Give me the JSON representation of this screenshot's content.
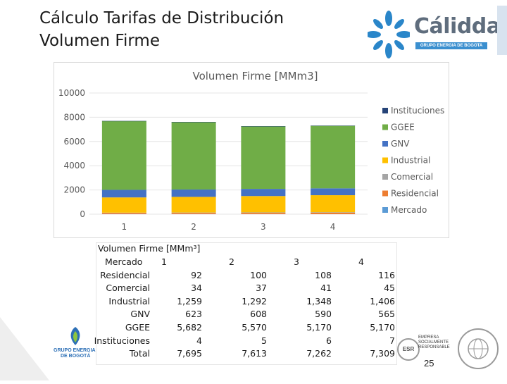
{
  "slide": {
    "title_line1": "Cálculo Tarifas de Distribución",
    "title_line2": "Volumen Firme",
    "page_number": "25"
  },
  "logo": {
    "brand": "Cálidda",
    "subtitle": "GRUPO ENERGIA DE BOGOTA",
    "brand_color": "#5f6d7d",
    "accent_color": "#3b8fcf"
  },
  "footer": {
    "gb_text_line1": "GRUPO ENERGIA",
    "gb_text_line2": "DE BOGOTÁ",
    "esr_line1": "EMPRESA",
    "esr_line2": "SOCIALMENTE",
    "esr_line3": "RESPONSABLE",
    "esr_badge": "ESR"
  },
  "chart_data": {
    "type": "bar",
    "stacked": true,
    "title": "Volumen Firme [MMm3]",
    "categories": [
      "1",
      "2",
      "3",
      "4"
    ],
    "ylim": [
      0,
      10000
    ],
    "yticks": [
      "0",
      "2000",
      "4000",
      "6000",
      "8000",
      "10000"
    ],
    "legend_position": "right",
    "grid": true,
    "series": [
      {
        "name": "Mercado",
        "color": "#5b9bd5",
        "values": [
          0,
          0,
          0,
          0
        ]
      },
      {
        "name": "Residencial",
        "color": "#ed7d31",
        "values": [
          92,
          100,
          108,
          116
        ]
      },
      {
        "name": "Comercial",
        "color": "#a5a5a5",
        "values": [
          34,
          37,
          41,
          45
        ]
      },
      {
        "name": "Industrial",
        "color": "#ffc000",
        "values": [
          1259,
          1292,
          1348,
          1406
        ]
      },
      {
        "name": "GNV",
        "color": "#4472c4",
        "values": [
          623,
          608,
          590,
          565
        ]
      },
      {
        "name": "GGEE",
        "color": "#70ad47",
        "values": [
          5682,
          5570,
          5170,
          5170
        ]
      },
      {
        "name": "Instituciones",
        "color": "#264478",
        "values": [
          4,
          5,
          6,
          7
        ]
      }
    ],
    "legend_order": [
      "Instituciones",
      "GGEE",
      "GNV",
      "Industrial",
      "Comercial",
      "Residencial",
      "Mercado"
    ]
  },
  "table": {
    "title": "Volumen Firme [MMm³]",
    "header_label": "Mercado",
    "columns": [
      "1",
      "2",
      "3",
      "4"
    ],
    "rows": [
      {
        "label": "Residencial",
        "values": [
          "92",
          "100",
          "108",
          "116"
        ]
      },
      {
        "label": "Comercial",
        "values": [
          "34",
          "37",
          "41",
          "45"
        ]
      },
      {
        "label": "Industrial",
        "values": [
          "1,259",
          "1,292",
          "1,348",
          "1,406"
        ]
      },
      {
        "label": "GNV",
        "values": [
          "623",
          "608",
          "590",
          "565"
        ]
      },
      {
        "label": "GGEE",
        "values": [
          "5,682",
          "5,570",
          "5,170",
          "5,170"
        ]
      },
      {
        "label": "Instituciones",
        "values": [
          "4",
          "5",
          "6",
          "7"
        ]
      },
      {
        "label": "Total",
        "values": [
          "7,695",
          "7,613",
          "7,262",
          "7,309"
        ]
      }
    ]
  }
}
